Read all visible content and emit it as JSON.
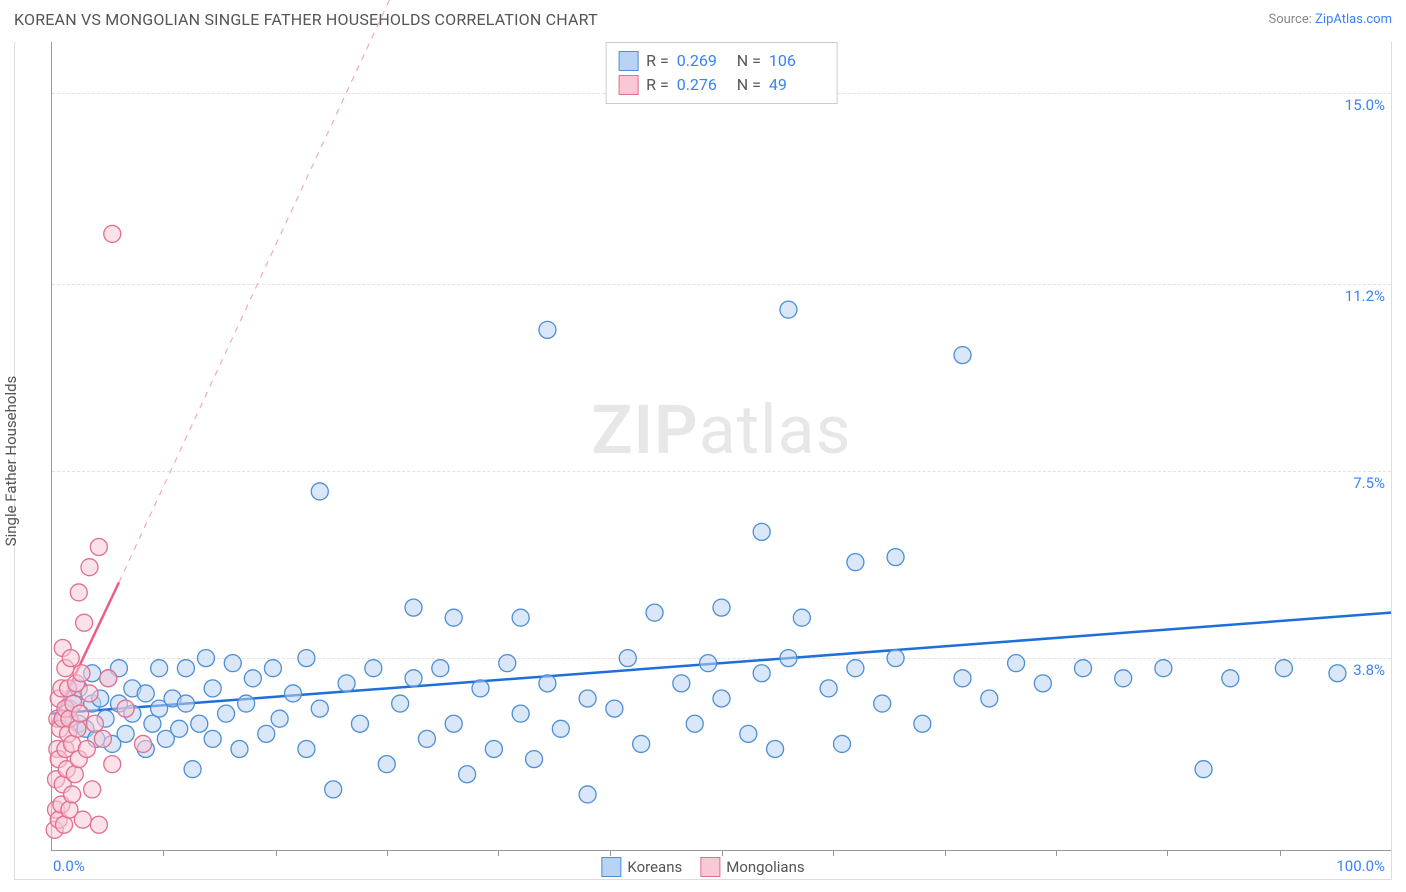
{
  "header": {
    "title": "KOREAN VS MONGOLIAN SINGLE FATHER HOUSEHOLDS CORRELATION CHART",
    "source_prefix": "Source: ",
    "source_link": "ZipAtlas.com"
  },
  "chart": {
    "type": "scatter",
    "y_label": "Single Father Households",
    "watermark_bold": "ZIP",
    "watermark_rest": "atlas",
    "background_color": "#ffffff",
    "grid_color": "#e2e2e2",
    "axis_color": "#999999",
    "x_range": [
      0,
      100
    ],
    "y_range": [
      0,
      16
    ],
    "x_min_label": "0.0%",
    "x_max_label": "100.0%",
    "x_ticks_pct": [
      8.3,
      16.7,
      25,
      33.3,
      41.7,
      50,
      58.3,
      66.7,
      75,
      83.3,
      91.7
    ],
    "y_gridlines": [
      {
        "value": 3.8,
        "label": "3.8%"
      },
      {
        "value": 7.5,
        "label": "7.5%"
      },
      {
        "value": 11.2,
        "label": "11.2%"
      },
      {
        "value": 15.0,
        "label": "15.0%"
      }
    ],
    "legend_top": [
      {
        "swatch_fill": "#b9d4f2",
        "swatch_stroke": "#4d8fd6",
        "r_label": "R =",
        "r_value": "0.269",
        "n_label": "N =",
        "n_value": "106"
      },
      {
        "swatch_fill": "#f8c9d5",
        "swatch_stroke": "#e16f8f",
        "r_label": "R =",
        "r_value": "0.276",
        "n_label": "N =",
        "n_value": "49"
      }
    ],
    "legend_bottom": [
      {
        "swatch_fill": "#b9d4f2",
        "swatch_stroke": "#4d8fd6",
        "label": "Koreans"
      },
      {
        "swatch_fill": "#f8c9d5",
        "swatch_stroke": "#e16f8f",
        "label": "Mongolians"
      }
    ],
    "trend_lines": [
      {
        "color": "#1e6fd9",
        "width": 2.5,
        "dash": "",
        "x1": 0,
        "y1": 2.7,
        "x2": 100,
        "y2": 4.7
      },
      {
        "color": "#ec5e85",
        "width": 2.5,
        "dash": "",
        "x1": 0,
        "y1": 2.5,
        "x2": 5,
        "y2": 5.3
      },
      {
        "color": "#f2a8bd",
        "width": 1.2,
        "dash": "6 6",
        "x1": 5,
        "y1": 5.3,
        "x2": 29,
        "y2": 19
      }
    ],
    "series": [
      {
        "name": "koreans",
        "fill": "#b9d4f2",
        "stroke": "#4d8fd6",
        "fill_opacity": 0.55,
        "r": 8.5,
        "points": [
          [
            1,
            2.6
          ],
          [
            1.3,
            2.8
          ],
          [
            1.6,
            3.0
          ],
          [
            2,
            2.5
          ],
          [
            2,
            3.2
          ],
          [
            2.5,
            2.4
          ],
          [
            3,
            2.9
          ],
          [
            3,
            3.5
          ],
          [
            3.3,
            2.2
          ],
          [
            3.6,
            3.0
          ],
          [
            4,
            2.6
          ],
          [
            4.2,
            3.4
          ],
          [
            4.5,
            2.1
          ],
          [
            5,
            2.9
          ],
          [
            5,
            3.6
          ],
          [
            5.5,
            2.3
          ],
          [
            6,
            2.7
          ],
          [
            6,
            3.2
          ],
          [
            7,
            2.0
          ],
          [
            7,
            3.1
          ],
          [
            7.5,
            2.5
          ],
          [
            8,
            2.8
          ],
          [
            8,
            3.6
          ],
          [
            8.5,
            2.2
          ],
          [
            9,
            3.0
          ],
          [
            9.5,
            2.4
          ],
          [
            10,
            2.9
          ],
          [
            10,
            3.6
          ],
          [
            10.5,
            1.6
          ],
          [
            11,
            2.5
          ],
          [
            11.5,
            3.8
          ],
          [
            12,
            2.2
          ],
          [
            12,
            3.2
          ],
          [
            13,
            2.7
          ],
          [
            13.5,
            3.7
          ],
          [
            14,
            2.0
          ],
          [
            14.5,
            2.9
          ],
          [
            15,
            3.4
          ],
          [
            16,
            2.3
          ],
          [
            16.5,
            3.6
          ],
          [
            17,
            2.6
          ],
          [
            18,
            3.1
          ],
          [
            19,
            2.0
          ],
          [
            19,
            3.8
          ],
          [
            20,
            2.8
          ],
          [
            20,
            7.1
          ],
          [
            21,
            1.2
          ],
          [
            22,
            3.3
          ],
          [
            23,
            2.5
          ],
          [
            24,
            3.6
          ],
          [
            25,
            1.7
          ],
          [
            26,
            2.9
          ],
          [
            27,
            3.4
          ],
          [
            27,
            4.8
          ],
          [
            28,
            2.2
          ],
          [
            29,
            3.6
          ],
          [
            30,
            2.5
          ],
          [
            30,
            4.6
          ],
          [
            31,
            1.5
          ],
          [
            32,
            3.2
          ],
          [
            33,
            2.0
          ],
          [
            34,
            3.7
          ],
          [
            35,
            2.7
          ],
          [
            35,
            4.6
          ],
          [
            36,
            1.8
          ],
          [
            37,
            3.3
          ],
          [
            37,
            10.3
          ],
          [
            38,
            2.4
          ],
          [
            40,
            1.1
          ],
          [
            40,
            3.0
          ],
          [
            42,
            2.8
          ],
          [
            43,
            3.8
          ],
          [
            44,
            2.1
          ],
          [
            45,
            4.7
          ],
          [
            47,
            3.3
          ],
          [
            48,
            2.5
          ],
          [
            49,
            3.7
          ],
          [
            50,
            3.0
          ],
          [
            50,
            4.8
          ],
          [
            52,
            2.3
          ],
          [
            53,
            3.5
          ],
          [
            53,
            6.3
          ],
          [
            54,
            2.0
          ],
          [
            55,
            3.8
          ],
          [
            55,
            10.7
          ],
          [
            56,
            4.6
          ],
          [
            58,
            3.2
          ],
          [
            59,
            2.1
          ],
          [
            60,
            3.6
          ],
          [
            60,
            5.7
          ],
          [
            62,
            2.9
          ],
          [
            63,
            3.8
          ],
          [
            63,
            5.8
          ],
          [
            65,
            2.5
          ],
          [
            68,
            3.4
          ],
          [
            68,
            9.8
          ],
          [
            70,
            3.0
          ],
          [
            72,
            3.7
          ],
          [
            74,
            3.3
          ],
          [
            77,
            3.6
          ],
          [
            80,
            3.4
          ],
          [
            83,
            3.6
          ],
          [
            86,
            1.6
          ],
          [
            88,
            3.4
          ],
          [
            92,
            3.6
          ],
          [
            96,
            3.5
          ]
        ]
      },
      {
        "name": "mongolians",
        "fill": "#f8c9d5",
        "stroke": "#e16f8f",
        "fill_opacity": 0.55,
        "r": 8.5,
        "points": [
          [
            0.2,
            0.4
          ],
          [
            0.3,
            0.8
          ],
          [
            0.3,
            1.4
          ],
          [
            0.4,
            2.0
          ],
          [
            0.4,
            2.6
          ],
          [
            0.5,
            0.6
          ],
          [
            0.5,
            1.8
          ],
          [
            0.5,
            3.0
          ],
          [
            0.6,
            2.4
          ],
          [
            0.7,
            0.9
          ],
          [
            0.7,
            3.2
          ],
          [
            0.8,
            1.3
          ],
          [
            0.8,
            2.6
          ],
          [
            0.8,
            4.0
          ],
          [
            0.9,
            0.5
          ],
          [
            1.0,
            2.0
          ],
          [
            1.0,
            2.8
          ],
          [
            1.0,
            3.6
          ],
          [
            1.1,
            1.6
          ],
          [
            1.2,
            2.3
          ],
          [
            1.2,
            3.2
          ],
          [
            1.3,
            0.8
          ],
          [
            1.3,
            2.6
          ],
          [
            1.4,
            3.8
          ],
          [
            1.5,
            1.1
          ],
          [
            1.5,
            2.1
          ],
          [
            1.6,
            2.9
          ],
          [
            1.7,
            1.5
          ],
          [
            1.8,
            3.3
          ],
          [
            1.9,
            2.4
          ],
          [
            2.0,
            5.1
          ],
          [
            2.0,
            1.8
          ],
          [
            2.1,
            2.7
          ],
          [
            2.2,
            3.5
          ],
          [
            2.3,
            0.6
          ],
          [
            2.4,
            4.5
          ],
          [
            2.6,
            2.0
          ],
          [
            2.8,
            3.1
          ],
          [
            2.8,
            5.6
          ],
          [
            3.0,
            1.2
          ],
          [
            3.2,
            2.5
          ],
          [
            3.5,
            6.0
          ],
          [
            3.5,
            0.5
          ],
          [
            3.8,
            2.2
          ],
          [
            4.2,
            3.4
          ],
          [
            4.5,
            1.7
          ],
          [
            4.5,
            12.2
          ],
          [
            5.5,
            2.8
          ],
          [
            6.8,
            2.1
          ]
        ]
      }
    ]
  }
}
